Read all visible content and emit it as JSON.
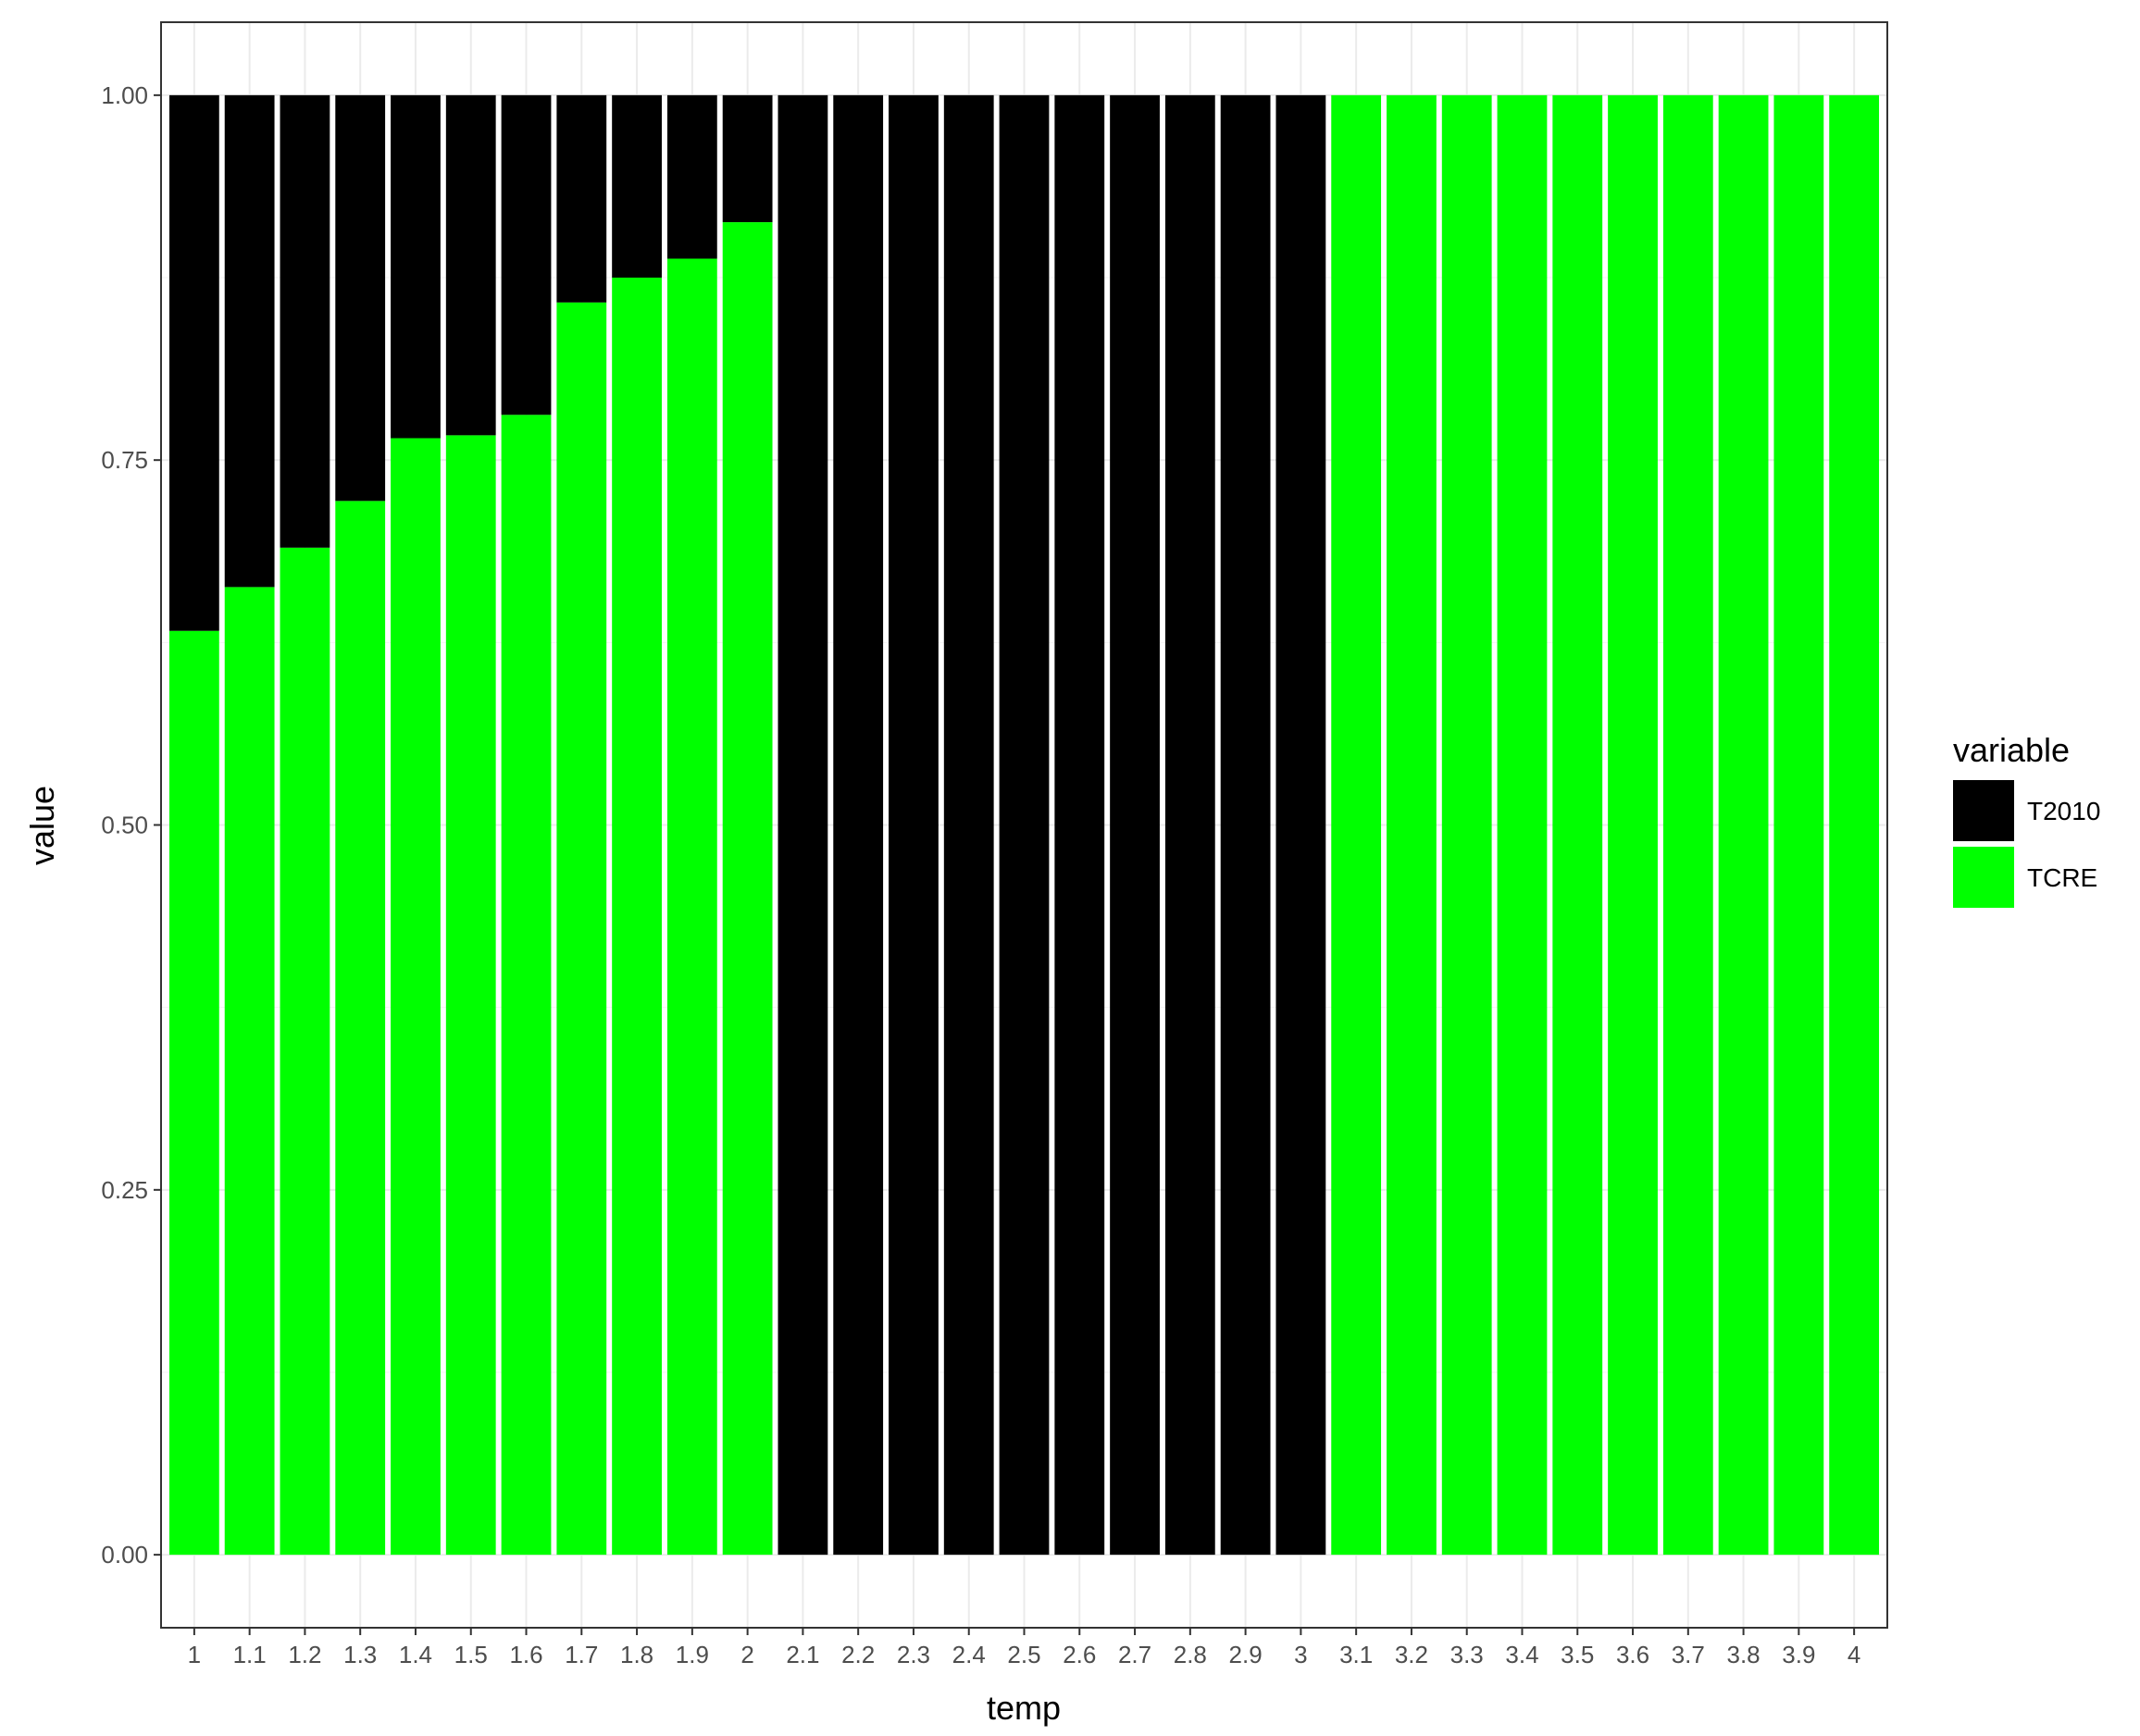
{
  "chart_data": {
    "type": "bar",
    "stacked": true,
    "position": "fill",
    "xlabel": "temp",
    "ylabel": "value",
    "ylim": [
      -0.05,
      1.05
    ],
    "yticks": [
      0.0,
      0.25,
      0.5,
      0.75,
      1.0
    ],
    "ytick_labels": [
      "0.00",
      "0.25",
      "0.50",
      "0.75",
      "1.00"
    ],
    "grid": true,
    "legend": {
      "title": "variable",
      "placement": "right"
    },
    "categories": [
      "1",
      "1.1",
      "1.2",
      "1.3",
      "1.4",
      "1.5",
      "1.6",
      "1.7",
      "1.8",
      "1.9",
      "2",
      "2.1",
      "2.2",
      "2.3",
      "2.4",
      "2.5",
      "2.6",
      "2.7",
      "2.8",
      "2.9",
      "3",
      "3.1",
      "3.2",
      "3.3",
      "3.4",
      "3.5",
      "3.6",
      "3.7",
      "3.8",
      "3.9",
      "4"
    ],
    "series": [
      {
        "name": "TCRE",
        "color": "#00ff00",
        "values": [
          0.633,
          0.663,
          0.69,
          0.722,
          0.765,
          0.767,
          0.781,
          0.858,
          0.875,
          0.888,
          0.913,
          0,
          0,
          0,
          0,
          0,
          0,
          0,
          0,
          0,
          0,
          1,
          1,
          1,
          1,
          1,
          1,
          1,
          1,
          1,
          1
        ]
      },
      {
        "name": "T2010",
        "color": "#000000",
        "values": [
          0.367,
          0.337,
          0.31,
          0.278,
          0.235,
          0.233,
          0.219,
          0.142,
          0.125,
          0.112,
          0.087,
          1,
          1,
          1,
          1,
          1,
          1,
          1,
          1,
          1,
          1,
          0,
          0,
          0,
          0,
          0,
          0,
          0,
          0,
          0,
          0
        ]
      }
    ],
    "legend_order": [
      "T2010",
      "TCRE"
    ]
  }
}
